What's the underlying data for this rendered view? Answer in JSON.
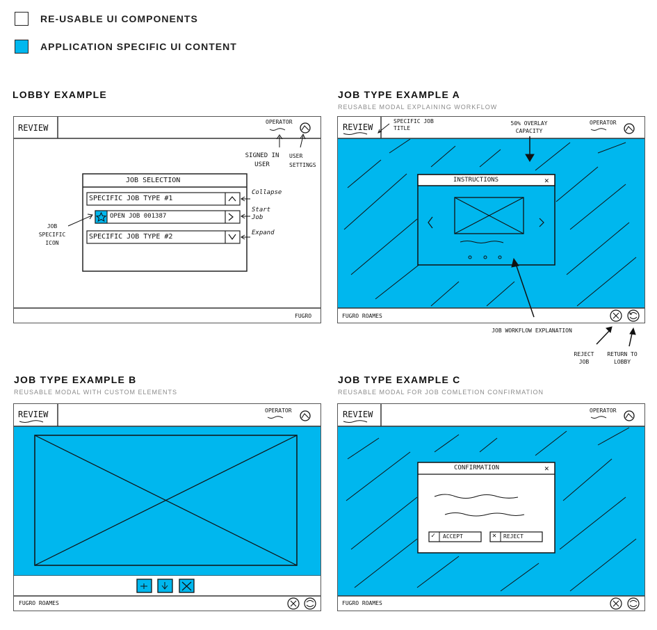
{
  "legend": {
    "reusable_label": "RE-USABLE UI COMPONENTS",
    "specific_label": "APPLICATION SPECIFIC UI CONTENT",
    "reusable_color": "#ffffff",
    "specific_color": "#00b7ee"
  },
  "lobby": {
    "title": "LOBBY EXAMPLE",
    "app_title": "REVIEW",
    "operator": "OPERATOR",
    "modal_title": "JOB SELECTION",
    "rows": [
      "SPECIFIC JOB TYPE #1",
      "OPEN JOB 001387",
      "SPECIFIC JOB TYPE #2"
    ],
    "row_icons": [
      "chevron-up",
      "star",
      "chevron-right",
      "chevron-down"
    ],
    "annotations": {
      "signed_in": "SIGNED IN USER",
      "settings": "USER SETTINGS",
      "collapse": "Collapse",
      "start": "Start Job",
      "expand": "Expand",
      "job_icon": "JOB SPECIFIC ICON"
    },
    "footer": "FUGRO"
  },
  "job_a": {
    "title": "JOB TYPE EXAMPLE A",
    "subtitle": "REUSABLE MODAL EXPLAINING WORKFLOW",
    "app_title": "REVIEW",
    "operator": "OPERATOR",
    "modal_title": "INSTRUCTIONS",
    "footer": "FUGRO ROAMES",
    "annotations": {
      "specific_title": "SPECIFIC JOB TITLE",
      "overlay": "50% OVERLAY CAPACITY",
      "workflow": "JOB WORKFLOW EXPLANATION",
      "reject": "REJECT JOB",
      "return": "RETURN TO LOBBY"
    }
  },
  "job_b": {
    "title": "JOB TYPE EXAMPLE B",
    "subtitle": "REUSABLE MODAL WITH CUSTOM ELEMENTS",
    "app_title": "REVIEW",
    "operator": "OPERATOR",
    "footer": "FUGRO ROAMES"
  },
  "job_c": {
    "title": "JOB TYPE EXAMPLE C",
    "subtitle": "REUSABLE MODAL FOR JOB COMLETION CONFIRMATION",
    "app_title": "REVIEW",
    "operator": "OPERATOR",
    "modal_title": "CONFIRMATION",
    "accept": "ACCEPT",
    "reject": "REJECT",
    "footer": "FUGRO ROAMES"
  }
}
